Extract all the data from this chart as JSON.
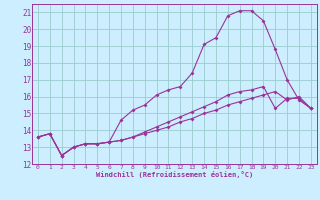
{
  "xlabel": "Windchill (Refroidissement éolien,°C)",
  "background_color": "#cceeff",
  "grid_color": "#99cccc",
  "line_color": "#993399",
  "xlim": [
    -0.5,
    23.5
  ],
  "ylim": [
    12,
    21.5
  ],
  "xticks": [
    0,
    1,
    2,
    3,
    4,
    5,
    6,
    7,
    8,
    9,
    10,
    11,
    12,
    13,
    14,
    15,
    16,
    17,
    18,
    19,
    20,
    21,
    22,
    23
  ],
  "yticks": [
    12,
    13,
    14,
    15,
    16,
    17,
    18,
    19,
    20,
    21
  ],
  "line1_x": [
    0,
    1,
    2,
    3,
    4,
    5,
    6,
    7,
    8,
    9,
    10,
    11,
    12,
    13,
    14,
    15,
    16,
    17,
    18,
    19,
    20,
    21,
    22,
    23
  ],
  "line1_y": [
    13.6,
    13.8,
    12.5,
    13.0,
    13.2,
    13.2,
    13.3,
    13.4,
    13.6,
    13.8,
    14.0,
    14.2,
    14.5,
    14.7,
    15.0,
    15.2,
    15.5,
    15.7,
    15.9,
    16.1,
    16.3,
    15.8,
    16.0,
    15.3
  ],
  "line2_x": [
    0,
    1,
    2,
    3,
    4,
    5,
    6,
    7,
    8,
    9,
    10,
    11,
    12,
    13,
    14,
    15,
    16,
    17,
    18,
    19,
    20,
    21,
    22,
    23
  ],
  "line2_y": [
    13.6,
    13.8,
    12.5,
    13.0,
    13.2,
    13.2,
    13.3,
    14.6,
    15.2,
    15.5,
    16.1,
    16.4,
    16.6,
    17.4,
    19.1,
    19.5,
    20.8,
    21.1,
    21.1,
    20.5,
    18.8,
    17.0,
    15.8,
    15.3
  ],
  "line3_x": [
    0,
    1,
    2,
    3,
    4,
    5,
    6,
    7,
    8,
    9,
    10,
    11,
    12,
    13,
    14,
    15,
    16,
    17,
    18,
    19,
    20,
    21,
    22,
    23
  ],
  "line3_y": [
    13.6,
    13.8,
    12.5,
    13.0,
    13.2,
    13.2,
    13.3,
    13.4,
    13.6,
    13.9,
    14.2,
    14.5,
    14.8,
    15.1,
    15.4,
    15.7,
    16.1,
    16.3,
    16.4,
    16.6,
    15.3,
    15.9,
    15.9,
    15.3
  ]
}
